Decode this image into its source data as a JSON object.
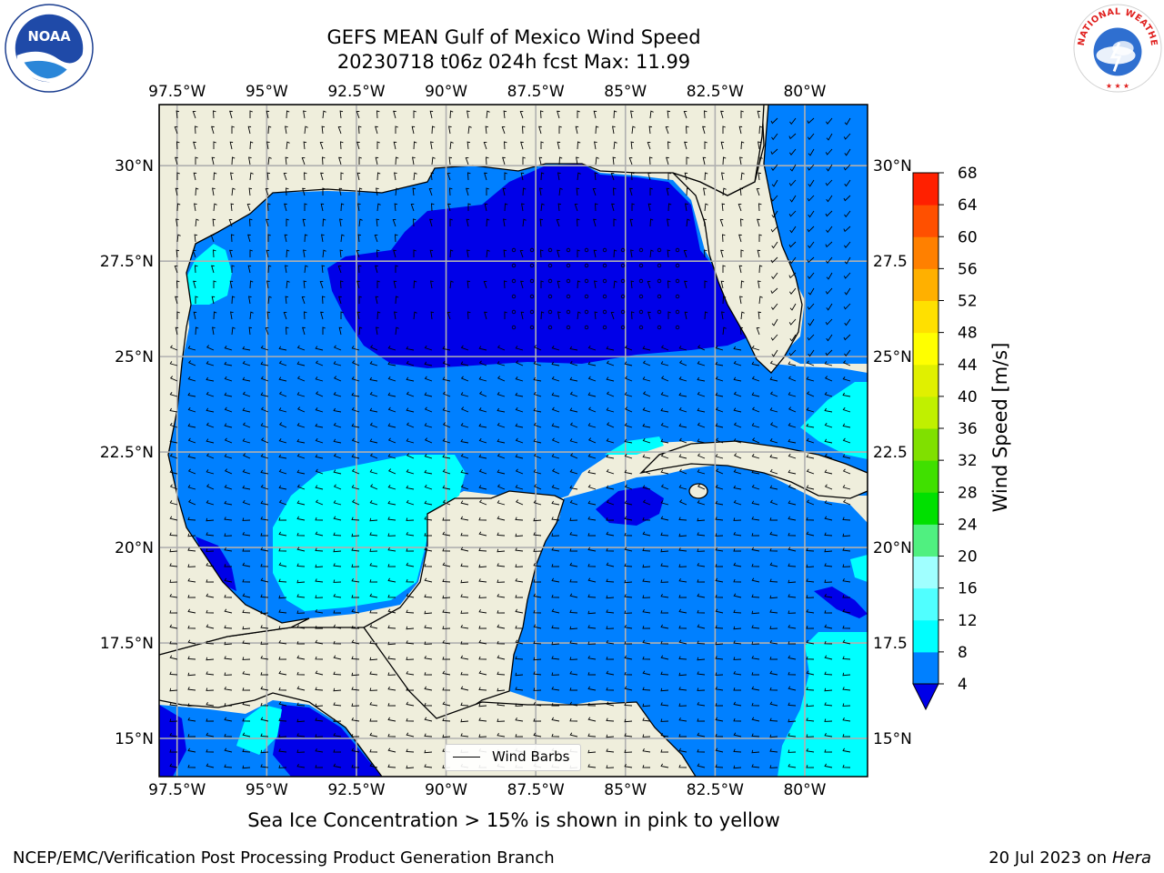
{
  "title": {
    "line1": "GEFS MEAN Gulf of Mexico Wind Speed",
    "line2": "20230718 t06z 024h fcst   Max: 11.99"
  },
  "caption": "Sea Ice Concentration > 15% is shown in pink to yellow",
  "footer": {
    "left": "NCEP/EMC/Verification Post Processing Product Generation Branch",
    "date": "20 Jul 2023 on ",
    "machine": "Hera"
  },
  "logos": {
    "left": "NOAA",
    "right": "NATIONAL WEATHER SERVICE"
  },
  "map": {
    "lon_labels": [
      "97.5°W",
      "95°W",
      "92.5°W",
      "90°W",
      "87.5°W",
      "85°W",
      "82.5°W",
      "80°W"
    ],
    "lat_labels_left": [
      "30°N",
      "27.5°N",
      "25°N",
      "22.5°N",
      "20°N",
      "17.5°N",
      "15°N"
    ],
    "lat_labels_right": [
      "30°N",
      "27.5",
      "25°N",
      "22.5",
      "20°N",
      "17.5",
      "15°N"
    ],
    "lon_values": [
      -97.5,
      -95,
      -92.5,
      -90,
      -87.5,
      -85,
      -82.5,
      -80
    ],
    "lat_values": [
      30,
      27.5,
      25,
      22.5,
      20,
      17.5,
      15
    ],
    "extent": {
      "lon_min": -98,
      "lon_max": -78.25,
      "lat_min": 14,
      "lat_max": 31.6
    },
    "legend_label": "Wind Barbs",
    "colors": {
      "land": "#efeedc",
      "ocean_4_8": "#0080ff",
      "ocean_0_4": "#0000e8",
      "ocean_8_12": "#00ffff",
      "grid": "#b0b0b0"
    }
  },
  "colorbar": {
    "title": "Wind Speed [m/s]",
    "ticks": [
      "4",
      "8",
      "12",
      "16",
      "20",
      "24",
      "28",
      "32",
      "36",
      "40",
      "44",
      "48",
      "52",
      "56",
      "60",
      "64",
      "68"
    ],
    "colors": [
      "#0080ff",
      "#00ffff",
      "#50ffff",
      "#a0ffff",
      "#50f080",
      "#00e000",
      "#40e000",
      "#80e000",
      "#c0f000",
      "#e0f000",
      "#ffff00",
      "#ffe000",
      "#ffb000",
      "#ff8000",
      "#ff5000",
      "#ff2000",
      "#ff0000"
    ],
    "under_color": "#0000e8"
  }
}
